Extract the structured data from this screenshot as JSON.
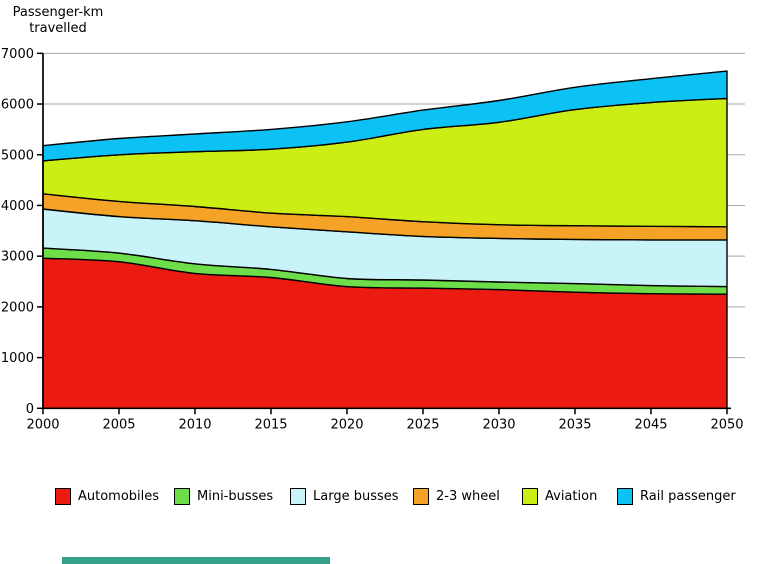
{
  "title": {
    "line1": "Passenger-km",
    "line2": "travelled"
  },
  "chart_data": {
    "type": "area",
    "stacked": true,
    "title": "Passenger-km travelled",
    "xlabel": "",
    "ylabel": "Passenger-km travelled",
    "ylim": [
      0,
      7000
    ],
    "ytick_step": 1000,
    "grid": true,
    "legend_position": "bottom",
    "categories": [
      "2000",
      "2005",
      "2010",
      "2015",
      "2020",
      "2025",
      "2030",
      "2035",
      "2045",
      "2050"
    ],
    "series": [
      {
        "name": "Automobiles",
        "color": "#ec1b12",
        "values": [
          2960,
          2890,
          2660,
          2580,
          2400,
          2370,
          2340,
          2290,
          2260,
          2250
        ]
      },
      {
        "name": "Mini-busses",
        "color": "#6ddd4a",
        "values": [
          200,
          170,
          190,
          160,
          160,
          160,
          150,
          170,
          160,
          150
        ]
      },
      {
        "name": "Large busses",
        "color": "#c8f3f8",
        "values": [
          770,
          720,
          850,
          840,
          920,
          860,
          860,
          870,
          900,
          920
        ]
      },
      {
        "name": "2-3 wheel",
        "color": "#f5a327",
        "values": [
          300,
          300,
          280,
          270,
          300,
          290,
          270,
          270,
          270,
          260
        ]
      },
      {
        "name": "Aviation",
        "color": "#cdee15",
        "values": [
          650,
          920,
          1080,
          1260,
          1470,
          1820,
          2020,
          2290,
          2440,
          2530
        ]
      },
      {
        "name": "Rail passenger",
        "color": "#0cc1f3",
        "values": [
          300,
          320,
          350,
          390,
          400,
          380,
          430,
          440,
          470,
          540
        ]
      }
    ],
    "colors": {
      "gridline": "#a8a8a8",
      "axis": "#000000",
      "outline": "#000000"
    }
  },
  "bottom_strip_color": "#35a08a"
}
